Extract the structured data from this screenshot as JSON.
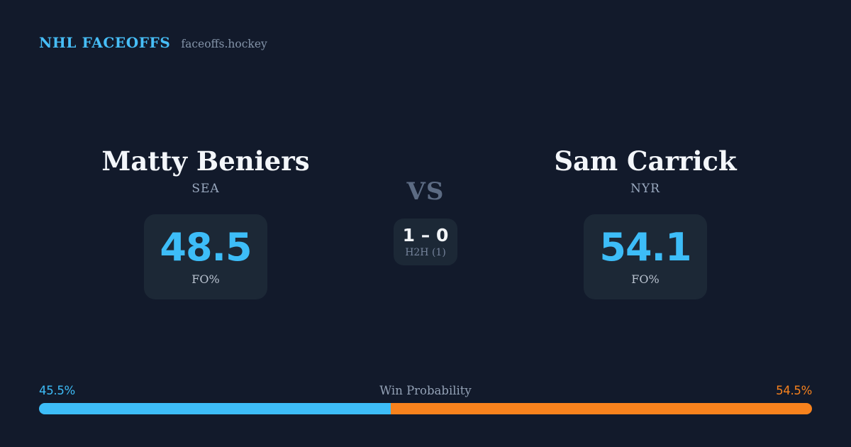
{
  "header": {
    "title": "NHL FACEOFFS",
    "site": "faceoffs.hockey"
  },
  "matchup": {
    "vs_label": "VS",
    "h2h": {
      "score": "1 – 0",
      "games_label": "H2H (1)"
    },
    "players": [
      {
        "name": "Matty Beniers",
        "team": "SEA",
        "stat_value": "48.5",
        "stat_label": "FO%"
      },
      {
        "name": "Sam Carrick",
        "team": "NYR",
        "stat_value": "54.1",
        "stat_label": "FO%"
      }
    ]
  },
  "win_probability": {
    "title": "Win Probability",
    "left_label": "45.5%",
    "right_label": "54.5%",
    "left_value": 45.5,
    "right_value": 54.5,
    "bar_left_color": "#3dbdf8",
    "bar_right_color": "#f8821d"
  },
  "colors": {
    "background": "#121a2b",
    "card_background": "#1c2836",
    "accent_blue": "#3dbdf8",
    "accent_orange": "#f8821d",
    "text_primary": "#f3f6fa",
    "text_muted": "#8393a8"
  },
  "chart_data": {
    "type": "bar",
    "title": "Win Probability",
    "subtitle": "NHL FACEOFFS — faceoffs.hockey",
    "categories": [
      "Win Probability"
    ],
    "series": [
      {
        "name": "Matty Beniers",
        "team": "SEA",
        "faceoff_pct": 48.5,
        "win_probability_pct": 45.5,
        "color": "#3dbdf8"
      },
      {
        "name": "Sam Carrick",
        "team": "NYR",
        "faceoff_pct": 54.1,
        "win_probability_pct": 54.5,
        "color": "#f8821d"
      }
    ],
    "head_to_head": {
      "score": "1 – 0",
      "games": 1
    },
    "layout": "single horizontal stacked bar, full width, values sum to 100",
    "xlim": [
      0,
      100
    ]
  }
}
